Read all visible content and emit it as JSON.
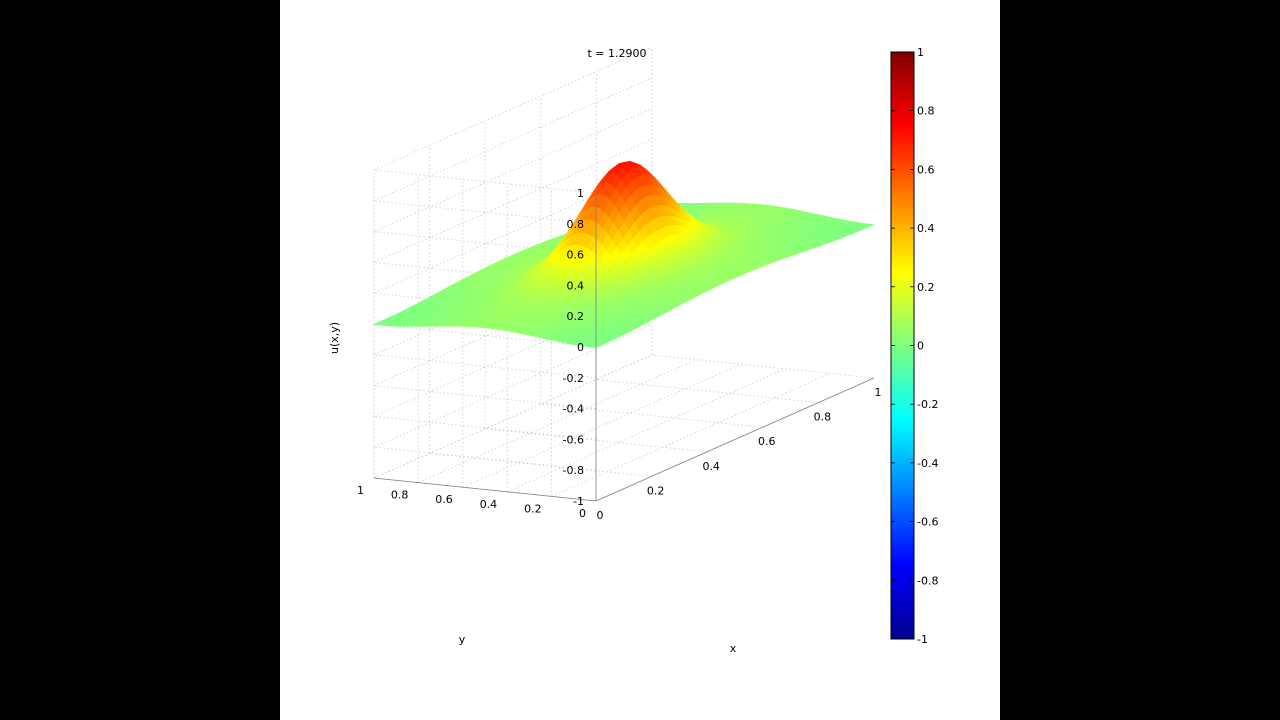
{
  "chart_data": {
    "type": "surface",
    "title": "t = 1.2900",
    "xlabel": "x",
    "ylabel": "y",
    "zlabel": "u(x,y)",
    "xlim": [
      0,
      1
    ],
    "ylim": [
      0,
      1
    ],
    "zlim": [
      -1,
      1
    ],
    "x_ticks": [
      "0",
      "0.2",
      "0.4",
      "0.6",
      "0.8",
      "1"
    ],
    "y_ticks": [
      "0",
      "0.2",
      "0.4",
      "0.6",
      "0.8",
      "1"
    ],
    "z_ticks": [
      "-1",
      "-0.8",
      "-0.6",
      "-0.4",
      "-0.2",
      "0",
      "0.2",
      "0.4",
      "0.6",
      "0.8",
      "1"
    ],
    "surface": {
      "peak_value": 0.67,
      "peak_x": 0.5,
      "peak_y": 0.5,
      "baseline_value": 0.05,
      "min_value": -0.04
    },
    "grid": true,
    "colormap": "jet",
    "colorbar": {
      "range": [
        -1,
        1
      ],
      "ticks": [
        "1",
        "0.8",
        "0.6",
        "0.4",
        "0.2",
        "0",
        "-0.2",
        "-0.4",
        "-0.6",
        "-0.8",
        "-1"
      ],
      "placement": "right"
    }
  }
}
